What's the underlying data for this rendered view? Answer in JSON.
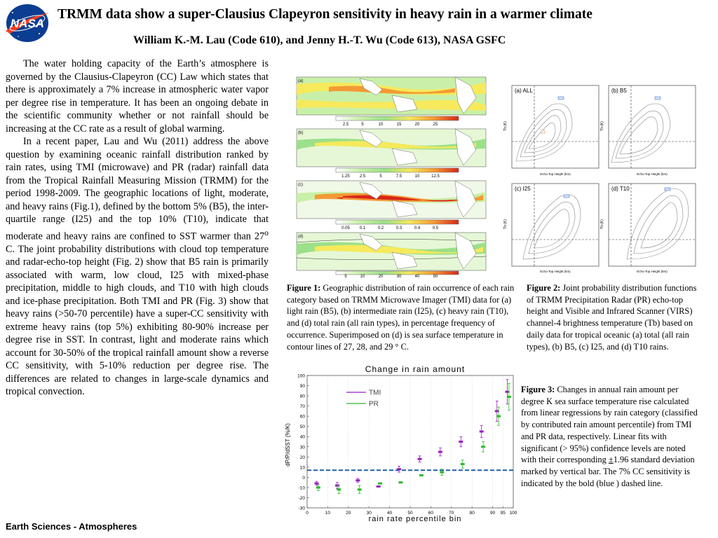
{
  "header": {
    "title": "TRMM data show a super-Clausius Clapeyron sensitivity in heavy rain in a warmer climate",
    "authors": "William K.-M. Lau (Code 610), and Jenny H.-T. Wu (Code 613), NASA GSFC",
    "logo_text": "NASA"
  },
  "body": {
    "paragraph1": "The water holding capacity of the Earth’s atmosphere is governed by the Clausius-Clapeyron (CC) Law which states that there is approximately a 7% increase in atmospheric water vapor per degree rise in temperature. It has been an ongoing debate in the scientific community whether or not rainfall should be increasing at the CC rate as a result of global warming.",
    "paragraph2_a": "In a recent paper, Lau and Wu (2011) address the above question by examining oceanic rainfall distribution ranked by rain rates, using TMI (microwave) and PR (radar) rainfall data from the Tropical Rainfall Measuring Mission (TRMM) for the period 1998-2009. The geographic locations of light, moderate, and heavy rains (Fig.1), defined by the bottom 5% (B5), the inter-quartile range (I25) and the top 10% (T10), indicate that moderate and heavy rains are confined to SST warmer than 27",
    "paragraph2_sup": "o",
    "paragraph2_b": " C. The joint probability distributions with cloud top temperature and radar-echo-top height (Fig. 2) show that B5 rain is primarily associated with warm, low cloud, I25 with mixed-phase precipitation, middle to high clouds, and T10 with high clouds and ice-phase precipitation. Both TMI and PR (Fig. 3) show that heavy rains (>50-70 percentile) have a super-CC sensitivity with extreme heavy rains (top 5%) exhibiting 80-90% increase per degree rise in SST. In contrast, light and moderate rains which account for 30-50% of the tropical rainfall amount show a reverse CC sensitivity, with 5-10% reduction per degree rise. The differences are related to changes in large-scale dynamics and tropical convection."
  },
  "fig1": {
    "panel_labels": [
      "(a)",
      "(b)",
      "(c)",
      "(d)"
    ],
    "colorbars": [
      [
        "2.5",
        "5",
        "10",
        "15",
        "20",
        "25"
      ],
      [
        "1.25",
        "2.5",
        "5",
        "7.5",
        "10",
        "12.5"
      ],
      [
        "0.05",
        "0.1",
        "0.2",
        "0.3",
        "0.4",
        "0.5"
      ],
      [
        "5",
        "10",
        "20",
        "30",
        "40",
        "50"
      ]
    ],
    "caption_label": "Figure 1:",
    "caption_text": " Geographic distribution of rain occurrence of each rain category based on TRMM Microwave Imager (TMI) data for (a) light rain (B5), (b) intermediate rain (I25), (c) heavy rain (T10), and (d) total rain (all rain types), in percentage frequency of occurrence. Superimposed on (d) is sea surface temperature in contour lines of 27, 28, and 29 ° C."
  },
  "fig2": {
    "panels": [
      "(a) ALL",
      "(b) B5",
      "(c) I25",
      "(d) T10"
    ],
    "xlabel": "Echo-Top Height (km)",
    "ylabel": "Tb (K)",
    "caption_label": "Figure 2:",
    "caption_text": " Joint probability distribution functions of TRMM Precipitation Radar (PR) echo-top height and Visible and Infrared Scanner (VIRS) channel-4 brightness temperature (Tb) based on daily data for tropical oceanic (a) total (all rain types), (b) B5, (c) I25, and (d) T10 rains."
  },
  "fig3": {
    "caption_label": "Figure 3:",
    "caption_text_a": " Changes in annual rain amount per degree K sea surface temperature rise calculated from linear regressions by rain category (classified by contributed rain amount percentile) from TMI and PR data, respectively. Linear fits with significant (> 95%) confidence levels are noted with their corresponding ",
    "caption_pm": "±",
    "caption_text_b": "1.96 standard deviation marked by vertical bar. The 7% CC sensitivity is indicated by the bold (blue ) dashed line."
  },
  "chart_data": {
    "type": "scatter",
    "title": "Change in rain amount",
    "xlabel": "rain rate percentile bin",
    "ylabel": "dP/P/dSST (%/K)",
    "xlim": [
      0,
      100
    ],
    "ylim": [
      -30,
      100
    ],
    "xticks": [
      "0",
      "10",
      "20",
      "30",
      "40",
      "50",
      "60",
      "70",
      "80",
      "90",
      "95",
      "100"
    ],
    "yticks": [
      "-30",
      "-20",
      "-10",
      "0",
      "10",
      "20",
      "30",
      "40",
      "50",
      "60",
      "70",
      "80",
      "90",
      "100"
    ],
    "cc_line": 7,
    "series": [
      {
        "name": "TMI",
        "color": "#9b1fbf",
        "x": [
          5,
          15,
          25,
          35,
          45,
          55,
          65,
          75,
          85,
          92.5,
          97.5
        ],
        "y": [
          -6,
          -8,
          -3,
          -9,
          8,
          18,
          25,
          35,
          45,
          65,
          84
        ],
        "err": [
          2,
          3,
          2,
          0,
          3,
          3,
          4,
          5,
          6,
          10,
          12
        ]
      },
      {
        "name": "PR",
        "color": "#2db82d",
        "x": [
          5,
          15,
          25,
          35,
          45,
          55,
          65,
          75,
          85,
          92.5,
          97.5
        ],
        "y": [
          -10,
          -12,
          -12,
          -6,
          -5,
          2,
          5,
          13,
          30,
          60,
          79
        ],
        "err": [
          3,
          4,
          4,
          0,
          0,
          0,
          3,
          4,
          5,
          9,
          13
        ]
      }
    ]
  },
  "footer": {
    "text": "Earth Sciences - Atmospheres"
  }
}
